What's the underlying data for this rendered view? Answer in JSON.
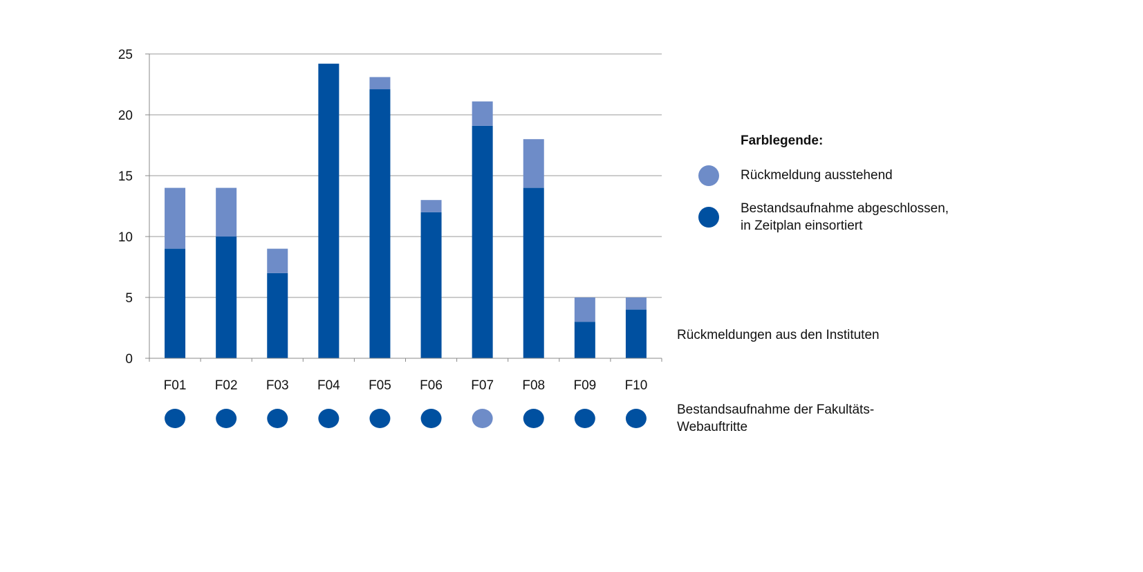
{
  "chart_data": {
    "type": "bar",
    "stacked": true,
    "categories": [
      "F01",
      "F02",
      "F03",
      "F04",
      "F05",
      "F06",
      "F07",
      "F08",
      "F09",
      "F10"
    ],
    "series": [
      {
        "name": "Bestandsaufnahme abgeschlossen, in Zeitplan einsortiert",
        "color": "#0050a0",
        "values": [
          9,
          10,
          7,
          24.2,
          22.1,
          12,
          19.1,
          14,
          3,
          4
        ]
      },
      {
        "name": "Rückmeldung ausstehend",
        "color": "#6e8cc8",
        "values": [
          5,
          4,
          2,
          0,
          1,
          1,
          2,
          4,
          2,
          1
        ]
      }
    ],
    "ylim": [
      0,
      25
    ],
    "yticks": [
      0,
      5,
      10,
      15,
      20,
      25
    ],
    "grid": true,
    "row_label": "Rückmeldungen aus den Instituten",
    "faculty_status": {
      "label": "Bestandsaufnahme der Fakultäts-Webauftritte",
      "status": [
        "done",
        "done",
        "done",
        "done",
        "done",
        "done",
        "pending",
        "done",
        "done",
        "done"
      ]
    }
  },
  "legend": {
    "title": "Farblegende:",
    "items": [
      {
        "label": "Rückmeldung ausstehend",
        "color": "#6e8cc8"
      },
      {
        "label_lines": [
          "Bestandsaufnahme abgeschlossen,",
          "in Zeitplan einsortiert"
        ],
        "color": "#0050a0"
      }
    ]
  },
  "colors": {
    "done": "#0050a0",
    "pending": "#6e8cc8",
    "grid": "#999999",
    "axis": "#888888"
  }
}
